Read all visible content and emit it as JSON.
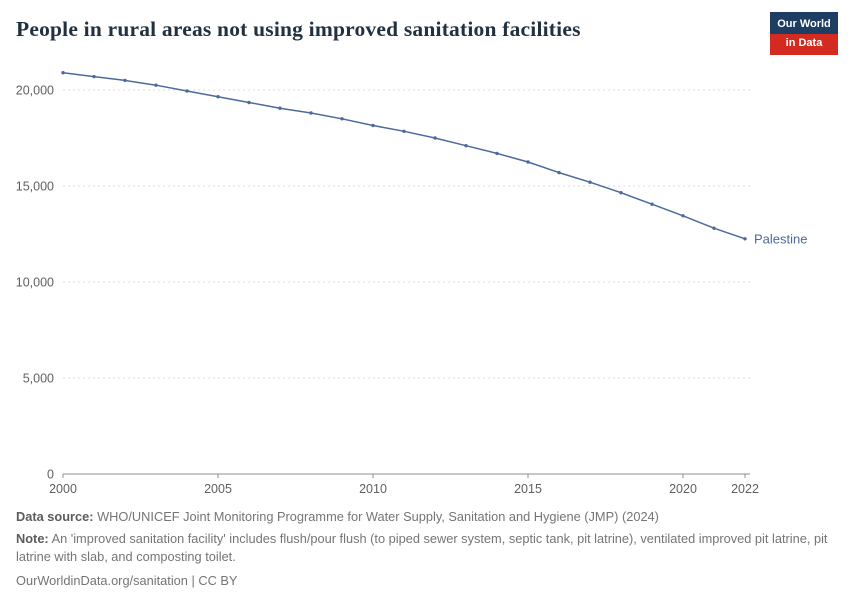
{
  "header": {
    "title": "People in rural areas not using improved sanitation facilities",
    "logo": {
      "line1": "Our World",
      "line2": "in Data",
      "bg_color": "#1d3d63",
      "accent_color": "#d42b21"
    }
  },
  "chart_data": {
    "type": "line",
    "title": "People in rural areas not using improved sanitation facilities",
    "x": [
      2000,
      2001,
      2002,
      2003,
      2004,
      2005,
      2006,
      2007,
      2008,
      2009,
      2010,
      2011,
      2012,
      2013,
      2014,
      2015,
      2016,
      2017,
      2018,
      2019,
      2020,
      2021,
      2022
    ],
    "series": [
      {
        "name": "Palestine",
        "color": "#4c6a9c",
        "values": [
          20900,
          20700,
          20500,
          20250,
          19950,
          19650,
          19350,
          19050,
          18800,
          18500,
          18150,
          17850,
          17500,
          17100,
          16700,
          16250,
          15700,
          15200,
          14650,
          14050,
          13450,
          12800,
          12250
        ]
      }
    ],
    "xlim": [
      2000,
      2022
    ],
    "ylim": [
      0,
      21500
    ],
    "xticks": [
      2000,
      2005,
      2010,
      2015,
      2020,
      2022
    ],
    "yticks": [
      0,
      5000,
      10000,
      15000,
      20000
    ],
    "grid": true,
    "grid_style": "dashed",
    "legend_position": "end-of-line",
    "xlabel": "",
    "ylabel": ""
  },
  "footer": {
    "datasource_label": "Data source:",
    "datasource_text": "WHO/UNICEF Joint Monitoring Programme for Water Supply, Sanitation and Hygiene (JMP) (2024)",
    "note_label": "Note:",
    "note_text": "An 'improved sanitation facility' includes flush/pour flush (to piped sewer system, septic tank, pit latrine), ventilated improved pit latrine, pit latrine with slab, and composting toilet.",
    "citation": "OurWorldinData.org/sanitation | CC BY"
  }
}
